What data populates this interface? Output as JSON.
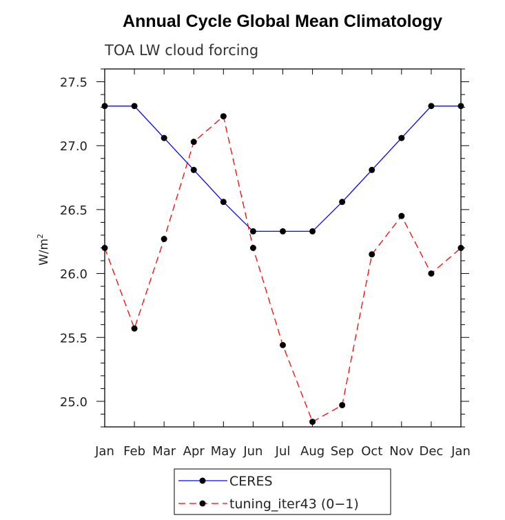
{
  "chart_data": {
    "type": "line",
    "title": "Annual Cycle Global Mean Climatology",
    "subtitle": "TOA LW cloud forcing",
    "ylabel": "W/m",
    "ylabel_sup": "2",
    "xlabel": "",
    "categories": [
      "Jan",
      "Feb",
      "Mar",
      "Apr",
      "May",
      "Jun",
      "Jul",
      "Aug",
      "Sep",
      "Oct",
      "Nov",
      "Dec",
      "Jan"
    ],
    "ylim": [
      24.8,
      27.6
    ],
    "yticks": [
      "25.0",
      "25.5",
      "26.0",
      "26.5",
      "27.0",
      "27.5"
    ],
    "grid": false,
    "legend_position": "bottom-center",
    "series": [
      {
        "name": "CERES",
        "color": "#0000ff",
        "dash": "solid",
        "marker": "filled-circle",
        "values": [
          27.31,
          27.31,
          27.06,
          26.81,
          26.56,
          26.33,
          26.33,
          26.33,
          26.56,
          26.81,
          27.06,
          27.31,
          27.31
        ]
      },
      {
        "name": "tuning_iter43 (0−1)",
        "color": "#ff0000",
        "dash": "dashed",
        "marker": "filled-circle",
        "values": [
          26.2,
          25.57,
          26.27,
          27.03,
          27.23,
          26.2,
          25.44,
          24.84,
          24.97,
          26.15,
          26.45,
          26.0,
          26.2
        ]
      }
    ]
  }
}
